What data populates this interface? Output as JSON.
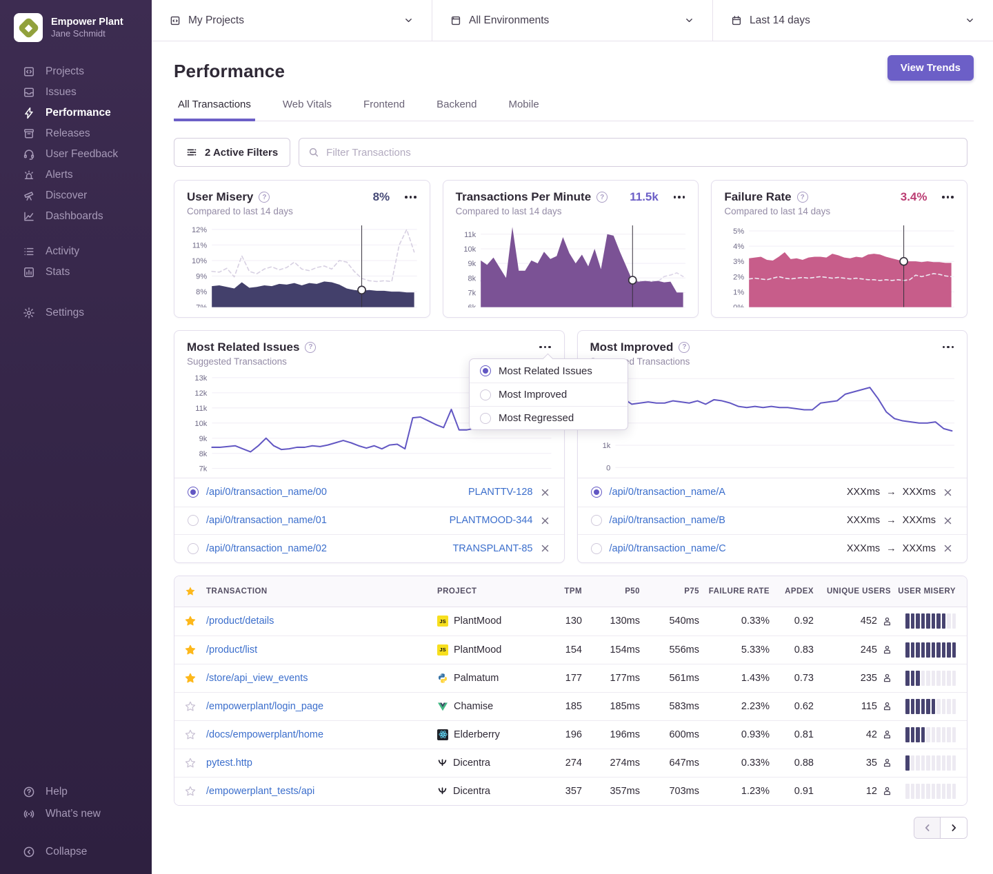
{
  "sidebar": {
    "org_name": "Empower Plant",
    "user_name": "Jane Schmidt",
    "items": [
      {
        "label": "Projects"
      },
      {
        "label": "Issues"
      },
      {
        "label": "Performance",
        "active": true
      },
      {
        "label": "Releases"
      },
      {
        "label": "User Feedback"
      },
      {
        "label": "Alerts"
      },
      {
        "label": "Discover"
      },
      {
        "label": "Dashboards"
      }
    ],
    "secondary": [
      {
        "label": "Activity"
      },
      {
        "label": "Stats"
      }
    ],
    "settings_label": "Settings",
    "footer": {
      "help": "Help",
      "whats_new": "What’s new",
      "collapse": "Collapse"
    }
  },
  "topbar": {
    "projects_filter": "My Projects",
    "environments_filter": "All Environments",
    "date_filter": "Last 14 days"
  },
  "header": {
    "title": "Performance",
    "view_trends_label": "View Trends",
    "tabs": [
      {
        "label": "All Transactions",
        "active": true
      },
      {
        "label": "Web Vitals"
      },
      {
        "label": "Frontend"
      },
      {
        "label": "Backend"
      },
      {
        "label": "Mobile"
      }
    ]
  },
  "filters": {
    "active_filters_label": "2 Active Filters",
    "search_placeholder": "Filter Transactions"
  },
  "metric_cards": [
    {
      "title": "User Misery",
      "value": "8%",
      "subtitle": "Compared to last 14 days"
    },
    {
      "title": "Transactions Per Minute",
      "value": "11.5k",
      "subtitle": "Compared to last 14 days"
    },
    {
      "title": "Failure Rate",
      "value": "3.4%",
      "subtitle": "Compared to last 14 days"
    }
  ],
  "dropdown": {
    "options": [
      {
        "label": "Most Related Issues",
        "selected": true
      },
      {
        "label": "Most Improved",
        "selected": false
      },
      {
        "label": "Most Regressed",
        "selected": false
      }
    ]
  },
  "trend_cards": [
    {
      "title": "Most Related Issues",
      "subtitle": "Suggested Transactions",
      "items": [
        {
          "name": "/api/0/transaction_name/00",
          "issue": "PLANTTV-128",
          "selected": true
        },
        {
          "name": "/api/0/transaction_name/01",
          "issue": "PLANTMOOD-344",
          "selected": false
        },
        {
          "name": "/api/0/transaction_name/02",
          "issue": "TRANSPLANT-85",
          "selected": false
        }
      ]
    },
    {
      "title": "Most Improved",
      "subtitle": "Suggested Transactions",
      "arrow": "→",
      "items": [
        {
          "name": "/api/0/transaction_name/A",
          "from": "XXXms",
          "to": "XXXms",
          "selected": true
        },
        {
          "name": "/api/0/transaction_name/B",
          "from": "XXXms",
          "to": "XXXms",
          "selected": false
        },
        {
          "name": "/api/0/transaction_name/C",
          "from": "XXXms",
          "to": "XXXms",
          "selected": false
        }
      ]
    }
  ],
  "table": {
    "columns": [
      "TRANSACTION",
      "PROJECT",
      "TPM",
      "P50",
      "P75",
      "FAILURE RATE",
      "APDEX",
      "UNIQUE USERS",
      "USER MISERY"
    ],
    "rows": [
      {
        "starred": true,
        "transaction": "/product/details",
        "project": "PlantMood",
        "platform": "javascript",
        "tpm": "130",
        "p50": "130ms",
        "p75": "540ms",
        "failure_rate": "0.33%",
        "apdex": "0.92",
        "users": "452",
        "misery": 8
      },
      {
        "starred": true,
        "transaction": "/product/list",
        "project": "PlantMood",
        "platform": "javascript",
        "tpm": "154",
        "p50": "154ms",
        "p75": "556ms",
        "failure_rate": "5.33%",
        "apdex": "0.83",
        "users": "245",
        "misery": 10
      },
      {
        "starred": true,
        "transaction": "/store/api_view_events",
        "project": "Palmatum",
        "platform": "python",
        "tpm": "177",
        "p50": "177ms",
        "p75": "561ms",
        "failure_rate": "1.43%",
        "apdex": "0.73",
        "users": "235",
        "misery": 3
      },
      {
        "starred": false,
        "transaction": "/empowerplant/login_page",
        "project": "Chamise",
        "platform": "vue",
        "tpm": "185",
        "p50": "185ms",
        "p75": "583ms",
        "failure_rate": "2.23%",
        "apdex": "0.62",
        "users": "115",
        "misery": 6
      },
      {
        "starred": false,
        "transaction": "/docs/empowerplant/home",
        "project": "Elderberry",
        "platform": "react",
        "tpm": "196",
        "p50": "196ms",
        "p75": "600ms",
        "failure_rate": "0.93%",
        "apdex": "0.81",
        "users": "42",
        "misery": 4
      },
      {
        "starred": false,
        "transaction": "pytest.http",
        "project": "Dicentra",
        "platform": "dicentra",
        "tpm": "274",
        "p50": "274ms",
        "p75": "647ms",
        "failure_rate": "0.33%",
        "apdex": "0.88",
        "users": "35",
        "misery": 1
      },
      {
        "starred": false,
        "transaction": "/empowerplant_tests/api",
        "project": "Dicentra",
        "platform": "dicentra",
        "tpm": "357",
        "p50": "357ms",
        "p75": "703ms",
        "failure_rate": "1.23%",
        "apdex": "0.91",
        "users": "12",
        "misery": 0
      }
    ]
  },
  "colors": {
    "accent_purple": "#6c5fc7",
    "link_blue": "#3b6ecc",
    "misery_navy": "#474370",
    "failure_pink": "#bb3d73",
    "sidebar_bg": "#342547",
    "star_yellow": "#fdb81b"
  },
  "chart_data": [
    {
      "type": "area",
      "title": "User Misery",
      "ylim": [
        7,
        12.35
      ],
      "yticks": [
        {
          "label": "12%",
          "v": 12
        },
        {
          "label": "11%",
          "v": 11
        },
        {
          "label": "10%",
          "v": 10
        },
        {
          "label": "9%",
          "v": 9
        },
        {
          "label": "8%",
          "v": 8
        },
        {
          "label": "7%",
          "v": 7
        }
      ],
      "series": [
        {
          "name": "previous period",
          "style": "dashed",
          "color": "#d7d0e2",
          "values": [
            9.3,
            9.25,
            9.5,
            8.95,
            10.3,
            9.3,
            9.15,
            9.45,
            9.6,
            9.4,
            9.55,
            9.9,
            9.45,
            9.35,
            9.55,
            9.65,
            9.45,
            10.0,
            9.9,
            9.3,
            8.85,
            8.7,
            8.65,
            8.7,
            8.65,
            11.0,
            12.0,
            10.55
          ]
        },
        {
          "name": "current period",
          "style": "area",
          "color": "#43406b",
          "values": [
            8.35,
            8.4,
            8.3,
            8.2,
            8.6,
            8.25,
            8.3,
            8.4,
            8.35,
            8.5,
            8.45,
            8.55,
            8.4,
            8.55,
            8.5,
            8.65,
            8.6,
            8.45,
            8.2,
            8.1,
            8.05,
            8.1,
            8.05,
            8.05,
            8.0,
            8.0,
            7.95,
            7.95
          ]
        }
      ],
      "cursor": {
        "index": 20,
        "value": 8.1
      }
    },
    {
      "type": "area",
      "title": "Transactions Per Minute",
      "ylim": [
        6,
        11.7
      ],
      "yticks": [
        {
          "label": "11k",
          "v": 11
        },
        {
          "label": "10k",
          "v": 10
        },
        {
          "label": "9k",
          "v": 9
        },
        {
          "label": "8k",
          "v": 8
        },
        {
          "label": "7k",
          "v": 7
        },
        {
          "label": "6k",
          "v": 6
        }
      ],
      "series": [
        {
          "name": "previous period",
          "style": "dashed",
          "color": "#ddd6e8",
          "values": [
            7.8,
            7.75,
            7.8,
            7.85,
            8.0,
            7.9,
            7.8,
            7.8,
            7.85,
            7.8,
            7.9,
            7.85,
            7.8,
            7.95,
            7.9,
            7.8,
            7.85,
            7.8,
            7.9,
            7.85,
            7.95,
            8.0,
            7.9,
            7.8,
            7.75,
            7.8,
            7.75,
            7.8,
            7.75,
            8.1,
            8.2,
            8.35,
            8.1
          ]
        },
        {
          "name": "current period",
          "style": "area",
          "color": "#7b5295",
          "values": [
            9.2,
            8.9,
            9.4,
            8.7,
            8.0,
            11.5,
            8.5,
            8.5,
            9.2,
            9.0,
            9.8,
            9.3,
            9.5,
            10.8,
            9.7,
            9.0,
            9.6,
            8.8,
            10.0,
            8.6,
            11.0,
            10.9,
            9.8,
            8.8,
            7.8,
            7.75,
            7.8,
            7.75,
            7.8,
            7.7,
            7.75,
            7.0,
            7.0
          ]
        }
      ],
      "cursor": {
        "index": 24,
        "value": 7.85
      }
    },
    {
      "type": "area",
      "title": "Failure Rate",
      "ylim": [
        0,
        5.45
      ],
      "yticks": [
        {
          "label": "5%",
          "v": 5
        },
        {
          "label": "4%",
          "v": 4
        },
        {
          "label": "3%",
          "v": 3
        },
        {
          "label": "2%",
          "v": 2
        },
        {
          "label": "1%",
          "v": 1
        },
        {
          "label": "0%",
          "v": 0
        }
      ],
      "series": [
        {
          "name": "current period",
          "style": "area",
          "color": "#c75d8a",
          "values": [
            3.2,
            3.25,
            3.3,
            3.1,
            3.05,
            3.3,
            3.6,
            3.15,
            3.2,
            3.1,
            3.25,
            3.3,
            3.3,
            3.25,
            3.5,
            3.4,
            3.25,
            3.2,
            3.3,
            3.25,
            3.45,
            3.5,
            3.45,
            3.3,
            3.2,
            3.1,
            3.0,
            3.0,
            3.0,
            2.95,
            3.0,
            2.95,
            2.95,
            2.9,
            2.9
          ]
        },
        {
          "name": "previous period",
          "style": "dashed",
          "color": "#eee8f2",
          "values": [
            1.85,
            1.9,
            1.85,
            1.8,
            1.9,
            2.0,
            1.9,
            1.85,
            1.9,
            1.95,
            1.9,
            1.95,
            2.0,
            1.95,
            1.9,
            1.95,
            1.9,
            1.85,
            1.9,
            1.85,
            1.8,
            1.8,
            1.75,
            1.8,
            1.75,
            1.8,
            1.75,
            1.8,
            2.1,
            2.0,
            2.1,
            2.2,
            2.15,
            2.05,
            2.0
          ]
        }
      ],
      "cursor": {
        "index": 26,
        "value": 3.0
      }
    },
    {
      "type": "line",
      "title": "Most Related Issues",
      "ylim": [
        6.55,
        13.45
      ],
      "xspan": 0.78,
      "yticks": [
        {
          "label": "13k",
          "v": 13
        },
        {
          "label": "12k",
          "v": 12
        },
        {
          "label": "11k",
          "v": 11
        },
        {
          "label": "10k",
          "v": 10
        },
        {
          "label": "9k",
          "v": 9
        },
        {
          "label": "8k",
          "v": 8
        },
        {
          "label": "7k",
          "v": 7
        }
      ],
      "series": [
        {
          "name": "transactions",
          "style": "line",
          "color": "#6257c3",
          "values": [
            8.4,
            8.4,
            8.45,
            8.5,
            8.3,
            8.1,
            8.5,
            9.0,
            8.5,
            8.25,
            8.3,
            8.4,
            8.4,
            8.5,
            8.45,
            8.55,
            8.7,
            8.85,
            8.7,
            8.5,
            8.35,
            8.5,
            8.3,
            8.55,
            8.6,
            8.3,
            10.35,
            10.4,
            10.15,
            9.9,
            9.7,
            10.9,
            9.55,
            9.55,
            9.65
          ]
        }
      ]
    },
    {
      "type": "line",
      "title": "Most Improved",
      "ylim": [
        -0.35,
        4.35
      ],
      "yticks": [
        {
          "label": "",
          "v": 4
        },
        {
          "label": "",
          "v": 3
        },
        {
          "label": "2k",
          "v": 2
        },
        {
          "label": "1k",
          "v": 1
        },
        {
          "label": "0",
          "v": 0
        }
      ],
      "series": [
        {
          "name": "transactions",
          "style": "line",
          "color": "#6257c3",
          "values": [
            2.8,
            3.1,
            2.85,
            2.9,
            2.95,
            2.9,
            2.9,
            3.0,
            2.95,
            2.9,
            3.0,
            2.85,
            3.05,
            3.0,
            2.9,
            2.75,
            2.7,
            2.75,
            2.7,
            2.75,
            2.7,
            2.7,
            2.65,
            2.6,
            2.6,
            2.9,
            2.95,
            3.0,
            3.3,
            3.4,
            3.5,
            3.6,
            3.1,
            2.5,
            2.2,
            2.1,
            2.05,
            2.0,
            2.0,
            2.05,
            1.75,
            1.65
          ]
        }
      ]
    }
  ]
}
